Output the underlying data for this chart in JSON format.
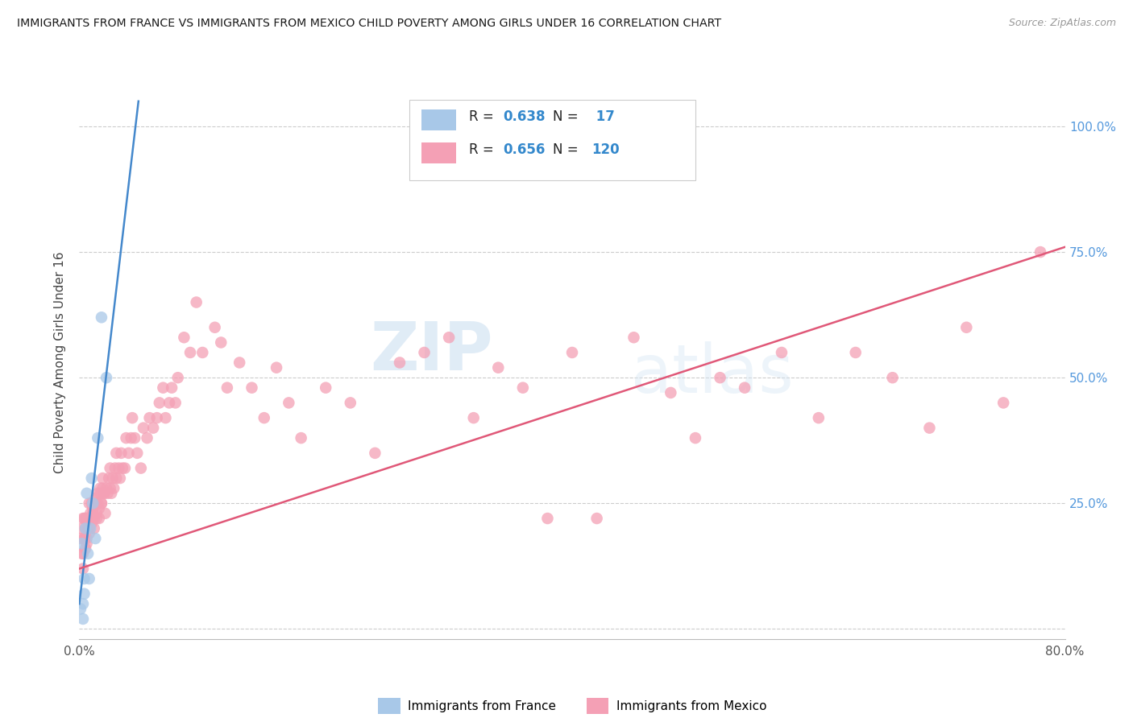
{
  "title": "IMMIGRANTS FROM FRANCE VS IMMIGRANTS FROM MEXICO CHILD POVERTY AMONG GIRLS UNDER 16 CORRELATION CHART",
  "source": "Source: ZipAtlas.com",
  "ylabel": "Child Poverty Among Girls Under 16",
  "france_R": 0.638,
  "france_N": 17,
  "mexico_R": 0.656,
  "mexico_N": 120,
  "xlim": [
    0.0,
    0.8
  ],
  "ylim": [
    -0.02,
    1.08
  ],
  "plot_ylim": [
    0.0,
    1.0
  ],
  "ytick_values": [
    0.0,
    0.25,
    0.5,
    0.75,
    1.0
  ],
  "ytick_labels": [
    "",
    "25.0%",
    "50.0%",
    "75.0%",
    "100.0%"
  ],
  "xtick_values": [
    0.0,
    0.1,
    0.2,
    0.3,
    0.4,
    0.5,
    0.6,
    0.7,
    0.8
  ],
  "xtick_labels": [
    "0.0%",
    "",
    "",
    "",
    "",
    "",
    "",
    "",
    "80.0%"
  ],
  "france_color": "#a8c8e8",
  "mexico_color": "#f4a0b5",
  "france_line_color": "#4488cc",
  "mexico_line_color": "#e05878",
  "legend_france_label": "Immigrants from France",
  "legend_mexico_label": "Immigrants from Mexico",
  "watermark_zip": "ZIP",
  "watermark_atlas": "atlas",
  "france_x": [
    0.001,
    0.002,
    0.003,
    0.004,
    0.005,
    0.006,
    0.007,
    0.008,
    0.009,
    0.01,
    0.011,
    0.013,
    0.015,
    0.018,
    0.022,
    0.003,
    0.004
  ],
  "france_y": [
    0.04,
    0.17,
    0.05,
    0.1,
    0.2,
    0.27,
    0.15,
    0.1,
    0.2,
    0.3,
    0.25,
    0.18,
    0.38,
    0.62,
    0.5,
    0.02,
    0.07
  ],
  "mexico_x": [
    0.001,
    0.002,
    0.002,
    0.003,
    0.003,
    0.004,
    0.004,
    0.005,
    0.005,
    0.006,
    0.006,
    0.007,
    0.007,
    0.008,
    0.008,
    0.009,
    0.01,
    0.01,
    0.011,
    0.012,
    0.013,
    0.014,
    0.015,
    0.016,
    0.017,
    0.018,
    0.019,
    0.02,
    0.021,
    0.022,
    0.023,
    0.024,
    0.025,
    0.026,
    0.027,
    0.028,
    0.029,
    0.03,
    0.032,
    0.033,
    0.034,
    0.035,
    0.037,
    0.038,
    0.04,
    0.042,
    0.043,
    0.045,
    0.047,
    0.05,
    0.052,
    0.055,
    0.057,
    0.06,
    0.063,
    0.065,
    0.068,
    0.07,
    0.073,
    0.075,
    0.078,
    0.08,
    0.085,
    0.09,
    0.095,
    0.1,
    0.11,
    0.115,
    0.12,
    0.13,
    0.14,
    0.15,
    0.16,
    0.17,
    0.18,
    0.2,
    0.22,
    0.24,
    0.26,
    0.28,
    0.3,
    0.32,
    0.34,
    0.36,
    0.38,
    0.4,
    0.42,
    0.45,
    0.48,
    0.5,
    0.52,
    0.54,
    0.57,
    0.6,
    0.63,
    0.66,
    0.69,
    0.72,
    0.75,
    0.78,
    0.003,
    0.004,
    0.005,
    0.006,
    0.007,
    0.008,
    0.009,
    0.01,
    0.011,
    0.012,
    0.013,
    0.014,
    0.015,
    0.016,
    0.017,
    0.018,
    0.019,
    0.02,
    0.025,
    0.03
  ],
  "mexico_y": [
    0.18,
    0.15,
    0.2,
    0.12,
    0.22,
    0.18,
    0.22,
    0.16,
    0.22,
    0.18,
    0.22,
    0.2,
    0.22,
    0.2,
    0.25,
    0.22,
    0.22,
    0.25,
    0.23,
    0.22,
    0.25,
    0.22,
    0.25,
    0.22,
    0.27,
    0.25,
    0.28,
    0.27,
    0.23,
    0.28,
    0.27,
    0.3,
    0.28,
    0.27,
    0.3,
    0.28,
    0.32,
    0.3,
    0.32,
    0.3,
    0.35,
    0.32,
    0.32,
    0.38,
    0.35,
    0.38,
    0.42,
    0.38,
    0.35,
    0.32,
    0.4,
    0.38,
    0.42,
    0.4,
    0.42,
    0.45,
    0.48,
    0.42,
    0.45,
    0.48,
    0.45,
    0.5,
    0.58,
    0.55,
    0.65,
    0.55,
    0.6,
    0.57,
    0.48,
    0.53,
    0.48,
    0.42,
    0.52,
    0.45,
    0.38,
    0.48,
    0.45,
    0.35,
    0.53,
    0.55,
    0.58,
    0.42,
    0.52,
    0.48,
    0.22,
    0.55,
    0.22,
    0.58,
    0.47,
    0.38,
    0.5,
    0.48,
    0.55,
    0.42,
    0.55,
    0.5,
    0.4,
    0.6,
    0.45,
    0.75,
    0.15,
    0.18,
    0.2,
    0.17,
    0.22,
    0.19,
    0.23,
    0.21,
    0.24,
    0.2,
    0.26,
    0.23,
    0.27,
    0.24,
    0.28,
    0.25,
    0.3,
    0.27,
    0.32,
    0.35
  ],
  "france_trend_x": [
    0.0,
    0.048
  ],
  "france_trend_y": [
    0.05,
    1.05
  ],
  "mexico_trend_x": [
    0.0,
    0.8
  ],
  "mexico_trend_y": [
    0.12,
    0.76
  ]
}
